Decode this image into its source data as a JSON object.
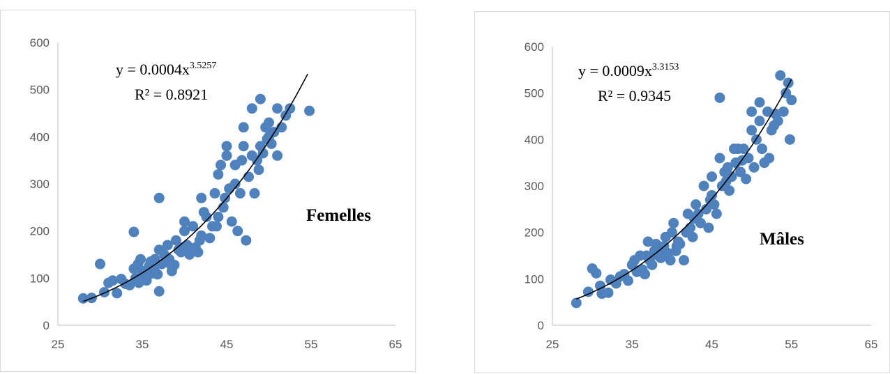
{
  "colors": {
    "marker": "#4f81bd",
    "trendline": "#000000",
    "axis": "#bfbfbf",
    "tick_text": "#595959"
  },
  "chart_data": [
    {
      "type": "scatter",
      "title": "",
      "label": "Femelles",
      "xlabel": "",
      "ylabel": "",
      "xlim": [
        25,
        65
      ],
      "ylim": [
        0,
        600
      ],
      "xticks": [
        25,
        35,
        45,
        55,
        65
      ],
      "yticks": [
        0,
        100,
        200,
        300,
        400,
        500,
        600
      ],
      "grid": false,
      "trendline": {
        "type": "power",
        "a": 0.0004,
        "b": 3.5257,
        "x_range": [
          28,
          54.6
        ]
      },
      "equation": {
        "base": "y = 0.0004x",
        "exponent": "3.5257"
      },
      "r2": "R² = 0.8921",
      "points": [
        [
          28,
          57
        ],
        [
          29,
          58
        ],
        [
          30,
          130
        ],
        [
          30.5,
          70
        ],
        [
          31,
          90
        ],
        [
          31.5,
          95
        ],
        [
          32,
          68
        ],
        [
          32.5,
          98
        ],
        [
          33,
          88
        ],
        [
          33.5,
          85
        ],
        [
          34,
          120
        ],
        [
          34,
          198
        ],
        [
          34.2,
          100
        ],
        [
          34.5,
          130
        ],
        [
          34.8,
          140
        ],
        [
          35,
          115
        ],
        [
          35.2,
          105
        ],
        [
          35.5,
          95
        ],
        [
          35.8,
          125
        ],
        [
          36,
          135
        ],
        [
          36.2,
          110
        ],
        [
          36.5,
          140
        ],
        [
          36.8,
          108
        ],
        [
          37,
          160
        ],
        [
          37,
          270
        ],
        [
          37,
          72
        ],
        [
          37.3,
          130
        ],
        [
          37.6,
          150
        ],
        [
          38,
          170
        ],
        [
          38.2,
          140
        ],
        [
          38.5,
          115
        ],
        [
          38.8,
          128
        ],
        [
          39,
          180
        ],
        [
          39.3,
          160
        ],
        [
          39.6,
          155
        ],
        [
          40,
          200
        ],
        [
          40,
          220
        ],
        [
          40.3,
          170
        ],
        [
          40.6,
          150
        ],
        [
          41,
          210
        ],
        [
          41.3,
          165
        ],
        [
          41.6,
          155
        ],
        [
          42,
          190
        ],
        [
          42,
          270
        ],
        [
          42.3,
          240
        ],
        [
          42.6,
          230
        ],
        [
          43,
          185
        ],
        [
          43.3,
          210
        ],
        [
          43.6,
          280
        ],
        [
          44,
          320
        ],
        [
          44,
          230
        ],
        [
          44.3,
          340
        ],
        [
          44.6,
          250
        ],
        [
          45,
          360
        ],
        [
          45,
          380
        ],
        [
          45.3,
          290
        ],
        [
          45.6,
          220
        ],
        [
          46,
          300
        ],
        [
          46,
          340
        ],
        [
          46.3,
          200
        ],
        [
          46.6,
          280
        ],
        [
          47,
          380
        ],
        [
          47,
          420
        ],
        [
          47.3,
          180
        ],
        [
          47.6,
          315
        ],
        [
          48,
          360
        ],
        [
          48,
          460
        ],
        [
          48.3,
          280
        ],
        [
          48.6,
          350
        ],
        [
          49,
          380
        ],
        [
          49,
          480
        ],
        [
          49.3,
          365
        ],
        [
          49.6,
          420
        ],
        [
          50,
          430
        ],
        [
          50,
          400
        ],
        [
          50.3,
          385
        ],
        [
          50.6,
          410
        ],
        [
          51,
          460
        ],
        [
          51,
          360
        ],
        [
          51.5,
          420
        ],
        [
          52,
          445
        ],
        [
          52.5,
          460
        ],
        [
          54.8,
          455
        ],
        [
          34.6,
          90
        ],
        [
          35.4,
          100
        ],
        [
          36.4,
          120
        ],
        [
          38.4,
          128
        ],
        [
          39.8,
          165
        ],
        [
          41.8,
          180
        ],
        [
          43.8,
          210
        ],
        [
          44.8,
          270
        ],
        [
          46.8,
          350
        ],
        [
          48.8,
          330
        ],
        [
          49.8,
          395
        ]
      ]
    },
    {
      "type": "scatter",
      "title": "",
      "label": "Mâles",
      "xlabel": "",
      "ylabel": "",
      "xlim": [
        25,
        65
      ],
      "ylim": [
        0,
        600
      ],
      "xticks": [
        25,
        35,
        45,
        55,
        65
      ],
      "yticks": [
        0,
        100,
        200,
        300,
        400,
        500,
        600
      ],
      "grid": false,
      "trendline": {
        "type": "power",
        "a": 0.0009,
        "b": 3.3153,
        "x_range": [
          28,
          55
        ]
      },
      "equation": {
        "base": "y = 0.0009x",
        "exponent": "3.3153"
      },
      "r2": "R² = 0.9345",
      "points": [
        [
          28,
          48
        ],
        [
          29.5,
          72
        ],
        [
          30,
          122
        ],
        [
          30.5,
          112
        ],
        [
          31,
          85
        ],
        [
          31.2,
          68
        ],
        [
          32,
          70
        ],
        [
          32.3,
          98
        ],
        [
          33,
          90
        ],
        [
          33.5,
          105
        ],
        [
          34,
          110
        ],
        [
          34.5,
          96
        ],
        [
          35,
          130
        ],
        [
          35.3,
          140
        ],
        [
          35.6,
          115
        ],
        [
          36,
          150
        ],
        [
          36.3,
          120
        ],
        [
          36.6,
          110
        ],
        [
          37,
          180
        ],
        [
          37.2,
          140
        ],
        [
          37.5,
          130
        ],
        [
          37.8,
          160
        ],
        [
          38,
          175
        ],
        [
          38.3,
          150
        ],
        [
          38.6,
          145
        ],
        [
          39,
          170
        ],
        [
          39.2,
          190
        ],
        [
          39.5,
          155
        ],
        [
          39.8,
          140
        ],
        [
          40,
          200
        ],
        [
          40.2,
          220
        ],
        [
          40.5,
          160
        ],
        [
          40.8,
          180
        ],
        [
          41,
          175
        ],
        [
          41.5,
          140
        ],
        [
          41.8,
          200
        ],
        [
          42,
          240
        ],
        [
          42.3,
          210
        ],
        [
          42.6,
          190
        ],
        [
          43,
          260
        ],
        [
          43.3,
          240
        ],
        [
          43.6,
          220
        ],
        [
          44,
          300
        ],
        [
          44.3,
          250
        ],
        [
          44.6,
          210
        ],
        [
          45,
          280
        ],
        [
          45,
          320
        ],
        [
          45.3,
          260
        ],
        [
          45.6,
          240
        ],
        [
          46,
          360
        ],
        [
          46,
          490
        ],
        [
          46.3,
          300
        ],
        [
          46.6,
          330
        ],
        [
          47,
          340
        ],
        [
          47.2,
          290
        ],
        [
          47.5,
          320
        ],
        [
          47.8,
          380
        ],
        [
          48,
          350
        ],
        [
          48.3,
          380
        ],
        [
          48.6,
          330
        ],
        [
          49,
          380
        ],
        [
          49.3,
          315
        ],
        [
          49.6,
          360
        ],
        [
          50,
          420
        ],
        [
          50,
          460
        ],
        [
          50.3,
          340
        ],
        [
          50.6,
          400
        ],
        [
          51,
          440
        ],
        [
          51,
          480
        ],
        [
          51.3,
          380
        ],
        [
          51.6,
          350
        ],
        [
          52,
          460
        ],
        [
          52.2,
          360
        ],
        [
          52.5,
          420
        ],
        [
          53,
          455
        ],
        [
          53.3,
          440
        ],
        [
          53.6,
          538
        ],
        [
          54,
          460
        ],
        [
          54.3,
          500
        ],
        [
          54.6,
          522
        ],
        [
          54.8,
          400
        ],
        [
          55,
          485
        ],
        [
          36.8,
          150
        ],
        [
          38.8,
          165
        ],
        [
          40.6,
          170
        ],
        [
          42.8,
          230
        ],
        [
          44.8,
          270
        ],
        [
          46.8,
          310
        ],
        [
          48.8,
          355
        ],
        [
          52.8,
          430
        ]
      ]
    }
  ]
}
